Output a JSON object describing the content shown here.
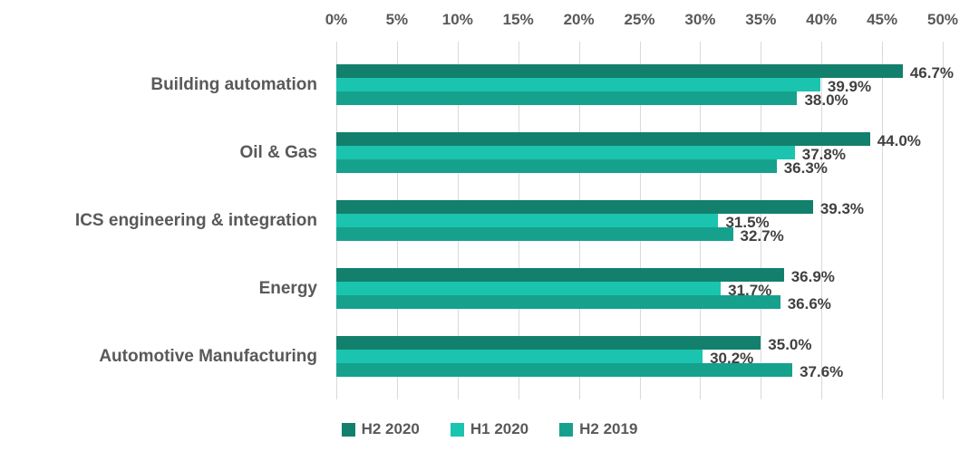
{
  "chart_data": {
    "type": "bar",
    "orientation": "horizontal",
    "title": "",
    "categories": [
      "Building automation",
      "Oil & Gas",
      "ICS engineering & integration",
      "Energy",
      "Automotive Manufacturing"
    ],
    "series": [
      {
        "name": "H2 2020",
        "color": "#12806C",
        "values": [
          46.7,
          44.0,
          39.3,
          36.9,
          35.0
        ]
      },
      {
        "name": "H1 2020",
        "color": "#1BC4AE",
        "values": [
          39.9,
          37.8,
          31.5,
          31.7,
          30.2
        ]
      },
      {
        "name": "H2 2019",
        "color": "#16A18D",
        "values": [
          38.0,
          36.3,
          32.7,
          36.6,
          37.6
        ]
      }
    ],
    "data_labels": [
      [
        "46.7%",
        "44.0%",
        "39.3%",
        "36.9%",
        "35.0%"
      ],
      [
        "39.9%",
        "37.8%",
        "31.5%",
        "31.7%",
        "30.2%"
      ],
      [
        "38.0%",
        "36.3%",
        "32.7%",
        "36.6%",
        "37.6%"
      ]
    ],
    "value_axis": {
      "position": "top",
      "min": 0,
      "max": 50,
      "step": 5,
      "tick_labels": [
        "0%",
        "5%",
        "10%",
        "15%",
        "20%",
        "25%",
        "30%",
        "35%",
        "40%",
        "45%",
        "50%"
      ]
    },
    "grid": true,
    "legend_position": "bottom",
    "legend_labels": [
      "H2 2020",
      "H1 2020",
      "H2 2019"
    ],
    "colors": {
      "grid": "#D9D9D9",
      "axis_text": "#595959",
      "category_text": "#595959",
      "data_label_text": "#404040",
      "background": "#FFFFFF"
    }
  }
}
